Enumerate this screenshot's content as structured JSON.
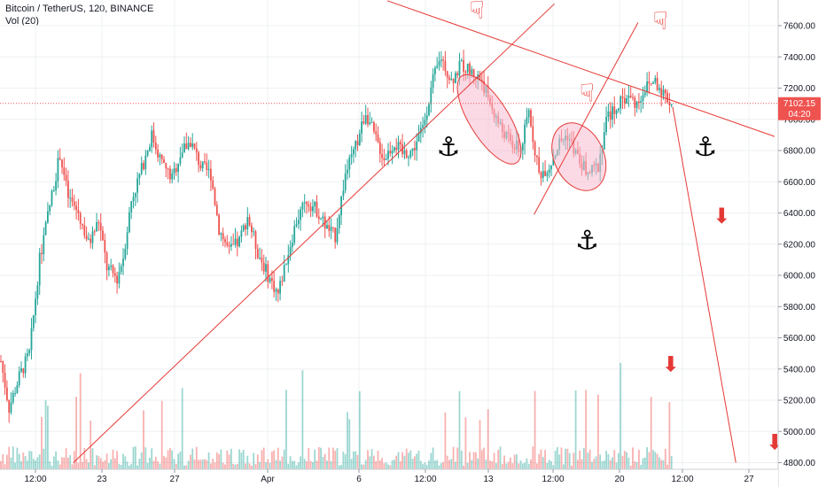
{
  "header": {
    "symbol_line": "Bitcoin / TetherUS, 120, BINANCE",
    "volume_label": "Vol (20)"
  },
  "chart_data": {
    "type": "candlestick",
    "symbol": "Bitcoin / TetherUS",
    "interval": "120",
    "exchange": "BINANCE",
    "volume_indicator": "Vol (20)",
    "yaxis_ticks": [
      "7600.00",
      "7400.00",
      "7200.00",
      "7000.00",
      "6800.00",
      "6600.00",
      "6400.00",
      "6200.00",
      "6000.00",
      "5800.00",
      "5600.00",
      "5400.00",
      "5200.00",
      "5000.00",
      "4800.00"
    ],
    "ylim": [
      4790,
      7730
    ],
    "xaxis_ticks": [
      "12:00",
      "23",
      "27",
      "Apr",
      "6",
      "12:00",
      "13",
      "12:00",
      "20",
      "12:00",
      "27"
    ],
    "current_price": "7102.15",
    "countdown": "04:20",
    "price_path": [
      [
        0,
        5450
      ],
      [
        4,
        5150
      ],
      [
        9,
        5350
      ],
      [
        14,
        5500
      ],
      [
        19,
        6100
      ],
      [
        24,
        6450
      ],
      [
        29,
        6780
      ],
      [
        33,
        6500
      ],
      [
        38,
        6400
      ],
      [
        43,
        6200
      ],
      [
        48,
        6350
      ],
      [
        52,
        6050
      ],
      [
        57,
        5980
      ],
      [
        60,
        6120
      ],
      [
        64,
        6480
      ],
      [
        69,
        6680
      ],
      [
        74,
        6900
      ],
      [
        79,
        6720
      ],
      [
        84,
        6620
      ],
      [
        88,
        6780
      ],
      [
        93,
        6860
      ],
      [
        98,
        6700
      ],
      [
        103,
        6650
      ],
      [
        107,
        6300
      ],
      [
        112,
        6150
      ],
      [
        117,
        6220
      ],
      [
        121,
        6380
      ],
      [
        126,
        6150
      ],
      [
        131,
        6000
      ],
      [
        136,
        5880
      ],
      [
        140,
        6100
      ],
      [
        145,
        6350
      ],
      [
        150,
        6480
      ],
      [
        155,
        6420
      ],
      [
        160,
        6300
      ],
      [
        164,
        6250
      ],
      [
        169,
        6650
      ],
      [
        174,
        6820
      ],
      [
        179,
        7050
      ],
      [
        183,
        6900
      ],
      [
        188,
        6750
      ],
      [
        193,
        6850
      ],
      [
        197,
        6780
      ],
      [
        202,
        6800
      ],
      [
        207,
        6950
      ],
      [
        212,
        7250
      ],
      [
        216,
        7400
      ],
      [
        221,
        7250
      ],
      [
        226,
        7350
      ],
      [
        231,
        7300
      ],
      [
        236,
        7250
      ],
      [
        240,
        7100
      ],
      [
        245,
        6950
      ],
      [
        250,
        6850
      ],
      [
        255,
        6800
      ],
      [
        259,
        7050
      ],
      [
        264,
        6650
      ],
      [
        269,
        6700
      ],
      [
        274,
        6850
      ],
      [
        278,
        6900
      ],
      [
        283,
        6750
      ],
      [
        288,
        6650
      ],
      [
        293,
        6700
      ],
      [
        297,
        7000
      ],
      [
        302,
        7080
      ],
      [
        307,
        7150
      ],
      [
        312,
        7100
      ],
      [
        316,
        7200
      ],
      [
        321,
        7250
      ],
      [
        326,
        7150
      ],
      [
        329,
        7102
      ]
    ],
    "trendlines": [
      {
        "color": "#e53935",
        "points": [
          [
            36,
            4800
          ],
          [
            272,
            7740
          ]
        ]
      },
      {
        "color": "#e53935",
        "points": [
          [
            190,
            7760
          ],
          [
            380,
            6890
          ]
        ]
      },
      {
        "color": "#e53935",
        "points": [
          [
            262,
            6390
          ],
          [
            313,
            7620
          ]
        ]
      },
      {
        "color": "#e53935",
        "points": [
          [
            330,
            7080
          ],
          [
            361,
            4800
          ]
        ]
      }
    ],
    "highlight_ellipses": [
      {
        "center": [
          240,
          7000
        ],
        "fill": "#f8bbd0"
      },
      {
        "center": [
          284,
          6760
        ],
        "fill": "#f8bbd0"
      }
    ],
    "annotations": [
      {
        "icon": "anchor-icon",
        "color": "#000000",
        "at": [
          220,
          6820
        ]
      },
      {
        "icon": "anchor-icon",
        "color": "#000000",
        "at": [
          288,
          6220
        ]
      },
      {
        "icon": "anchor-icon",
        "color": "#000000",
        "at": [
          346,
          6820
        ]
      },
      {
        "icon": "pointing-hand-icon",
        "color": "#e53935",
        "at": [
          234,
          7700
        ]
      },
      {
        "icon": "pointing-hand-icon",
        "color": "#e53935",
        "at": [
          288,
          7170
        ]
      },
      {
        "icon": "pointing-hand-icon",
        "color": "#e53935",
        "at": [
          324,
          7630
        ]
      },
      {
        "icon": "down-arrow-icon",
        "color": "#e53935",
        "at": [
          354,
          6380
        ]
      },
      {
        "icon": "down-arrow-icon",
        "color": "#e53935",
        "at": [
          329,
          5430
        ]
      },
      {
        "icon": "down-arrow-icon",
        "color": "#e53935",
        "at": [
          380,
          4930
        ]
      }
    ],
    "colors": {
      "up": "#26a69a",
      "down": "#ef5350",
      "annotation_red": "#e53935",
      "price_tag": "#ef5350",
      "grid": "#eef0f3"
    },
    "grid": true
  }
}
